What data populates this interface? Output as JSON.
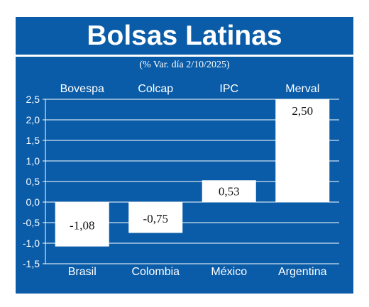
{
  "header": {
    "title": "Bolsas Latinas",
    "subtitle": "(% Var. día 2/10/2025)"
  },
  "colors": {
    "background": "#0a5ca8",
    "bars": "#ffffff",
    "text": "#ffffff",
    "value_text": "#111111"
  },
  "chart_data": {
    "type": "bar",
    "title": "Bolsas Latinas",
    "subtitle": "(% Var. día 2/10/2025)",
    "index_labels": [
      "Bovespa",
      "Colcap",
      "IPC",
      "Merval"
    ],
    "categories": [
      "Brasil",
      "Colombia",
      "México",
      "Argentina"
    ],
    "values": [
      -1.08,
      -0.75,
      0.53,
      2.5
    ],
    "value_labels": [
      "-1,08",
      "-0,75",
      "0,53",
      "2,50"
    ],
    "yticks": [
      2.5,
      2.0,
      1.5,
      1.0,
      0.5,
      0.0,
      -0.5,
      -1.0,
      -1.5
    ],
    "ytick_labels": [
      "2,5",
      "2,0",
      "1,5",
      "1,0",
      "0,5",
      "0,0",
      "-0,5",
      "-1,0",
      "-1,5"
    ],
    "ylim": [
      -1.5,
      2.5
    ],
    "grid": true,
    "xlabel": "",
    "ylabel": ""
  }
}
